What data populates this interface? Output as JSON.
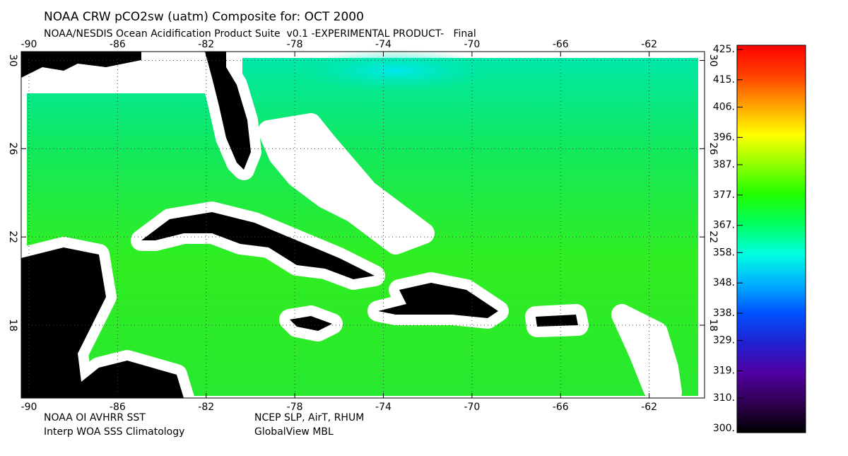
{
  "chart_data": {
    "type": "map",
    "title": "NOAA CRW pCO2sw (uatm) Composite for: OCT 2000",
    "subtitle": "NOAA/NESDIS Ocean Acidification Product Suite  v0.1 -EXPERIMENTAL PRODUCT-   Final",
    "xlim": [
      -90.35,
      -59.5
    ],
    "ylim": [
      14.7,
      30.4
    ],
    "xticks": [
      -90,
      -86,
      -82,
      -78,
      -74,
      -70,
      -66,
      -62
    ],
    "yticks": [
      18,
      22,
      26,
      30
    ],
    "grid": true,
    "colorbar": {
      "clim": [
        300,
        425
      ],
      "colormap": [
        "#000000",
        "#300050",
        "#5000a0",
        "#2020d0",
        "#0050ff",
        "#00b0ff",
        "#00ffe0",
        "#00ff60",
        "#20ff00",
        "#90ff00",
        "#ffff00",
        "#ffa000",
        "#ff4000",
        "#ff0000"
      ],
      "ticks": [
        {
          "value": 425,
          "label": "425."
        },
        {
          "value": 415,
          "label": "415."
        },
        {
          "value": 406,
          "label": "406."
        },
        {
          "value": 396,
          "label": "396."
        },
        {
          "value": 387,
          "label": "387."
        },
        {
          "value": 377,
          "label": "377."
        },
        {
          "value": 367,
          "label": "367."
        },
        {
          "value": 358,
          "label": "358."
        },
        {
          "value": 348,
          "label": "348."
        },
        {
          "value": 338,
          "label": "338."
        },
        {
          "value": 329,
          "label": "329."
        },
        {
          "value": 319,
          "label": "319."
        },
        {
          "value": 310,
          "label": "310."
        },
        {
          "value": 300,
          "label": "300."
        }
      ]
    },
    "sources": [
      "NOAA OI AVHRR SST",
      "Interp WOA SSS Climatology",
      "NCEP SLP, AirT, RHUM",
      "GlobalView MBL"
    ]
  }
}
